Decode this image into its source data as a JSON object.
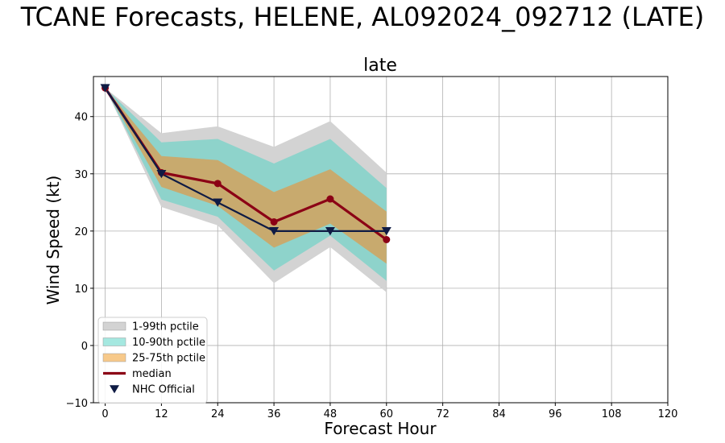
{
  "chart_data": {
    "type": "line",
    "suptitle": "TCANE Forecasts, HELENE, AL092024_092712 (LATE)",
    "title": "late",
    "xlabel": "Forecast Hour",
    "ylabel": "Wind Speed (kt)",
    "xlim": [
      -2.5,
      120
    ],
    "ylim": [
      -10,
      47
    ],
    "xticks": [
      0,
      12,
      24,
      36,
      48,
      60,
      72,
      84,
      96,
      108,
      120
    ],
    "yticks": [
      -10,
      0,
      10,
      20,
      30,
      40
    ],
    "grid": true,
    "x": [
      0,
      12,
      24,
      36,
      48,
      60
    ],
    "bands": [
      {
        "name": "1-99th pctile",
        "color": "#d3d3d3",
        "lower": [
          45,
          24.2,
          21,
          10.9,
          17.2,
          9.3
        ],
        "upper": [
          45,
          37.1,
          38.3,
          34.7,
          39.2,
          30.2
        ]
      },
      {
        "name": "10-90th pctile",
        "color": "#8ed3cb",
        "lower": [
          45,
          25.5,
          22.5,
          13.1,
          19.2,
          11.3
        ],
        "upper": [
          45,
          35.5,
          36.1,
          31.8,
          36.1,
          27.5
        ]
      },
      {
        "name": "25-75th pctile",
        "color": "#c8aa6e",
        "lower": [
          45,
          27.7,
          24.4,
          17.1,
          21.3,
          14.3
        ],
        "upper": [
          45,
          33.1,
          32.4,
          26.8,
          30.8,
          23.4
        ]
      }
    ],
    "series": [
      {
        "name": "median",
        "color": "#8b0015",
        "values": [
          45,
          30.2,
          28.3,
          21.6,
          25.6,
          18.5
        ]
      },
      {
        "name": "NHC Official",
        "color": "#0f1b44",
        "values": [
          45,
          30,
          25,
          20,
          20,
          20
        ]
      }
    ],
    "legend": {
      "position": "lower-left",
      "entries": [
        {
          "label": "1-99th pctile",
          "swatch_color": "#d3d3d3",
          "kind": "patch"
        },
        {
          "label": "10-90th pctile",
          "swatch_color": "#a5e8e0",
          "kind": "patch"
        },
        {
          "label": "25-75th pctile",
          "swatch_color": "#f7c98a",
          "kind": "patch"
        },
        {
          "label": "median",
          "swatch_color": "#8b0015",
          "kind": "line"
        },
        {
          "label": "NHC Official",
          "swatch_color": "#0f1b44",
          "kind": "marker"
        }
      ]
    }
  }
}
